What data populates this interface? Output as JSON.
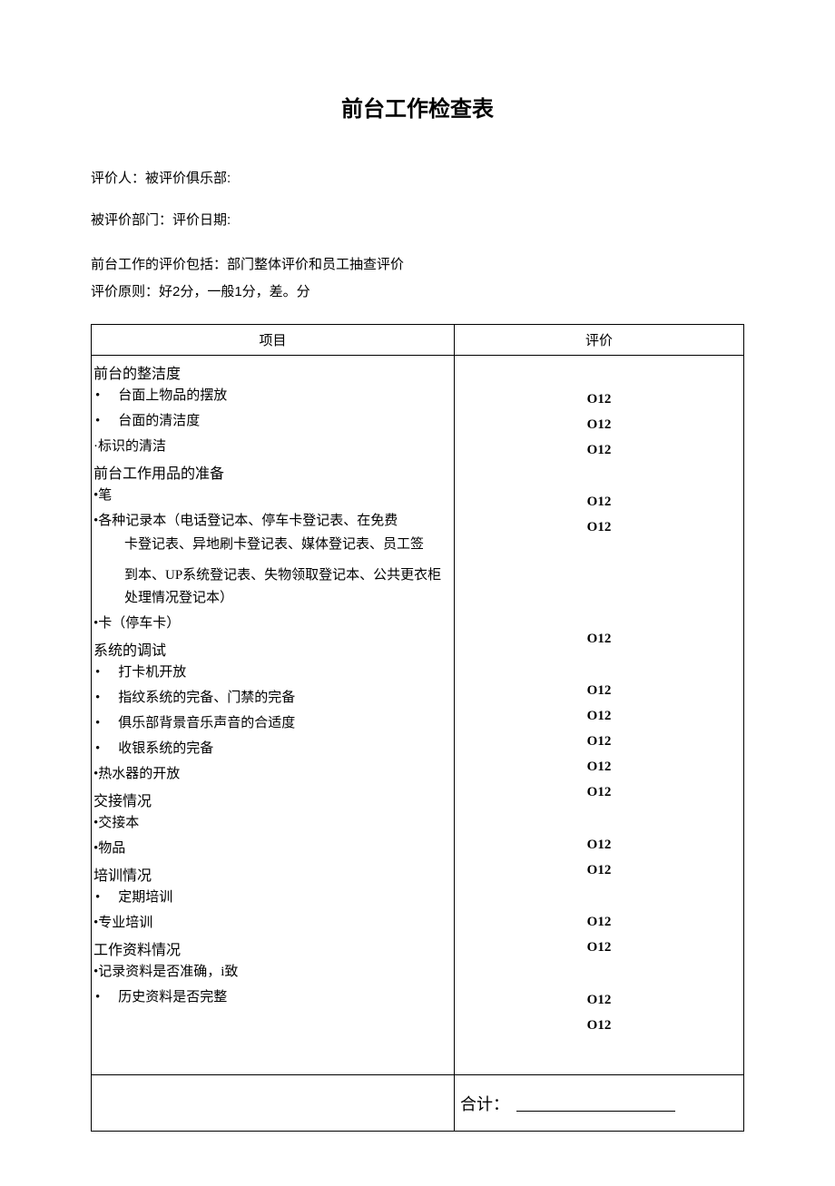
{
  "title": "前台工作检查表",
  "info_line_1": "评价人：被评价俱乐部:",
  "info_line_2": "被评价部门：评价日期:",
  "desc_line_1": "前台工作的评价包括：部门整体评价和员工抽查评价",
  "desc_line_2": "评价原则：好2分，一般1分，差。分",
  "table": {
    "header_left": "项目",
    "header_right": "评价",
    "eval_mark": "O12",
    "sections": [
      {
        "title": "前台的整洁度",
        "items": [
          {
            "bullet": "•",
            "indent": true,
            "text": "台面上物品的摆放",
            "eval": true
          },
          {
            "bullet": "•",
            "indent": true,
            "text": "台面的清洁度",
            "eval": true
          },
          {
            "bullet": "·",
            "indent": false,
            "text": "标识的清洁",
            "eval": true
          }
        ]
      },
      {
        "title": "前台工作用品的准备",
        "items": [
          {
            "bullet": "•",
            "indent": false,
            "text": "笔",
            "eval": true
          },
          {
            "bullet": "•",
            "indent": false,
            "text": "各种记录本（电话登记本、停车卡登记表、在免费",
            "eval": true,
            "wrap": [
              "卡登记表、异地刷卡登记表、媒体登记表、员工签",
              "到本、UP系统登记表、失物领取登记本、公共更衣柜",
              "处理情况登记本）"
            ]
          },
          {
            "bullet": "•",
            "indent": false,
            "text": "卡（停车卡）",
            "eval": true
          }
        ]
      },
      {
        "title": "系统的调试",
        "items": [
          {
            "bullet": "•",
            "indent": true,
            "text": "打卡机开放",
            "eval": true
          },
          {
            "bullet": "•",
            "indent": true,
            "text": "指纹系统的完备、门禁的完备",
            "eval": true
          },
          {
            "bullet": "•",
            "indent": true,
            "text": "俱乐部背景音乐声音的合适度",
            "eval": true
          },
          {
            "bullet": "•",
            "indent": true,
            "text": "收银系统的完备",
            "eval": true
          },
          {
            "bullet": "•",
            "indent": false,
            "text": "热水器的开放",
            "eval": true
          }
        ]
      },
      {
        "title": "交接情况",
        "items": [
          {
            "bullet": "•",
            "indent": false,
            "text": "交接本",
            "eval": true
          },
          {
            "bullet": "•",
            "indent": false,
            "text": "物品",
            "eval": true
          }
        ]
      },
      {
        "title": "培训情况",
        "items": [
          {
            "bullet": "•",
            "indent": true,
            "text": "定期培训",
            "eval": true
          },
          {
            "bullet": "•",
            "indent": false,
            "text": "专业培训",
            "eval": true
          }
        ]
      },
      {
        "title": "工作资料情况",
        "items": [
          {
            "bullet": "•",
            "indent": false,
            "text": "记录资料是否准确，i致",
            "eval": true
          },
          {
            "bullet": "•",
            "indent": true,
            "text": "历史资料是否完整",
            "eval": true
          }
        ]
      }
    ],
    "total_label": "合计："
  }
}
